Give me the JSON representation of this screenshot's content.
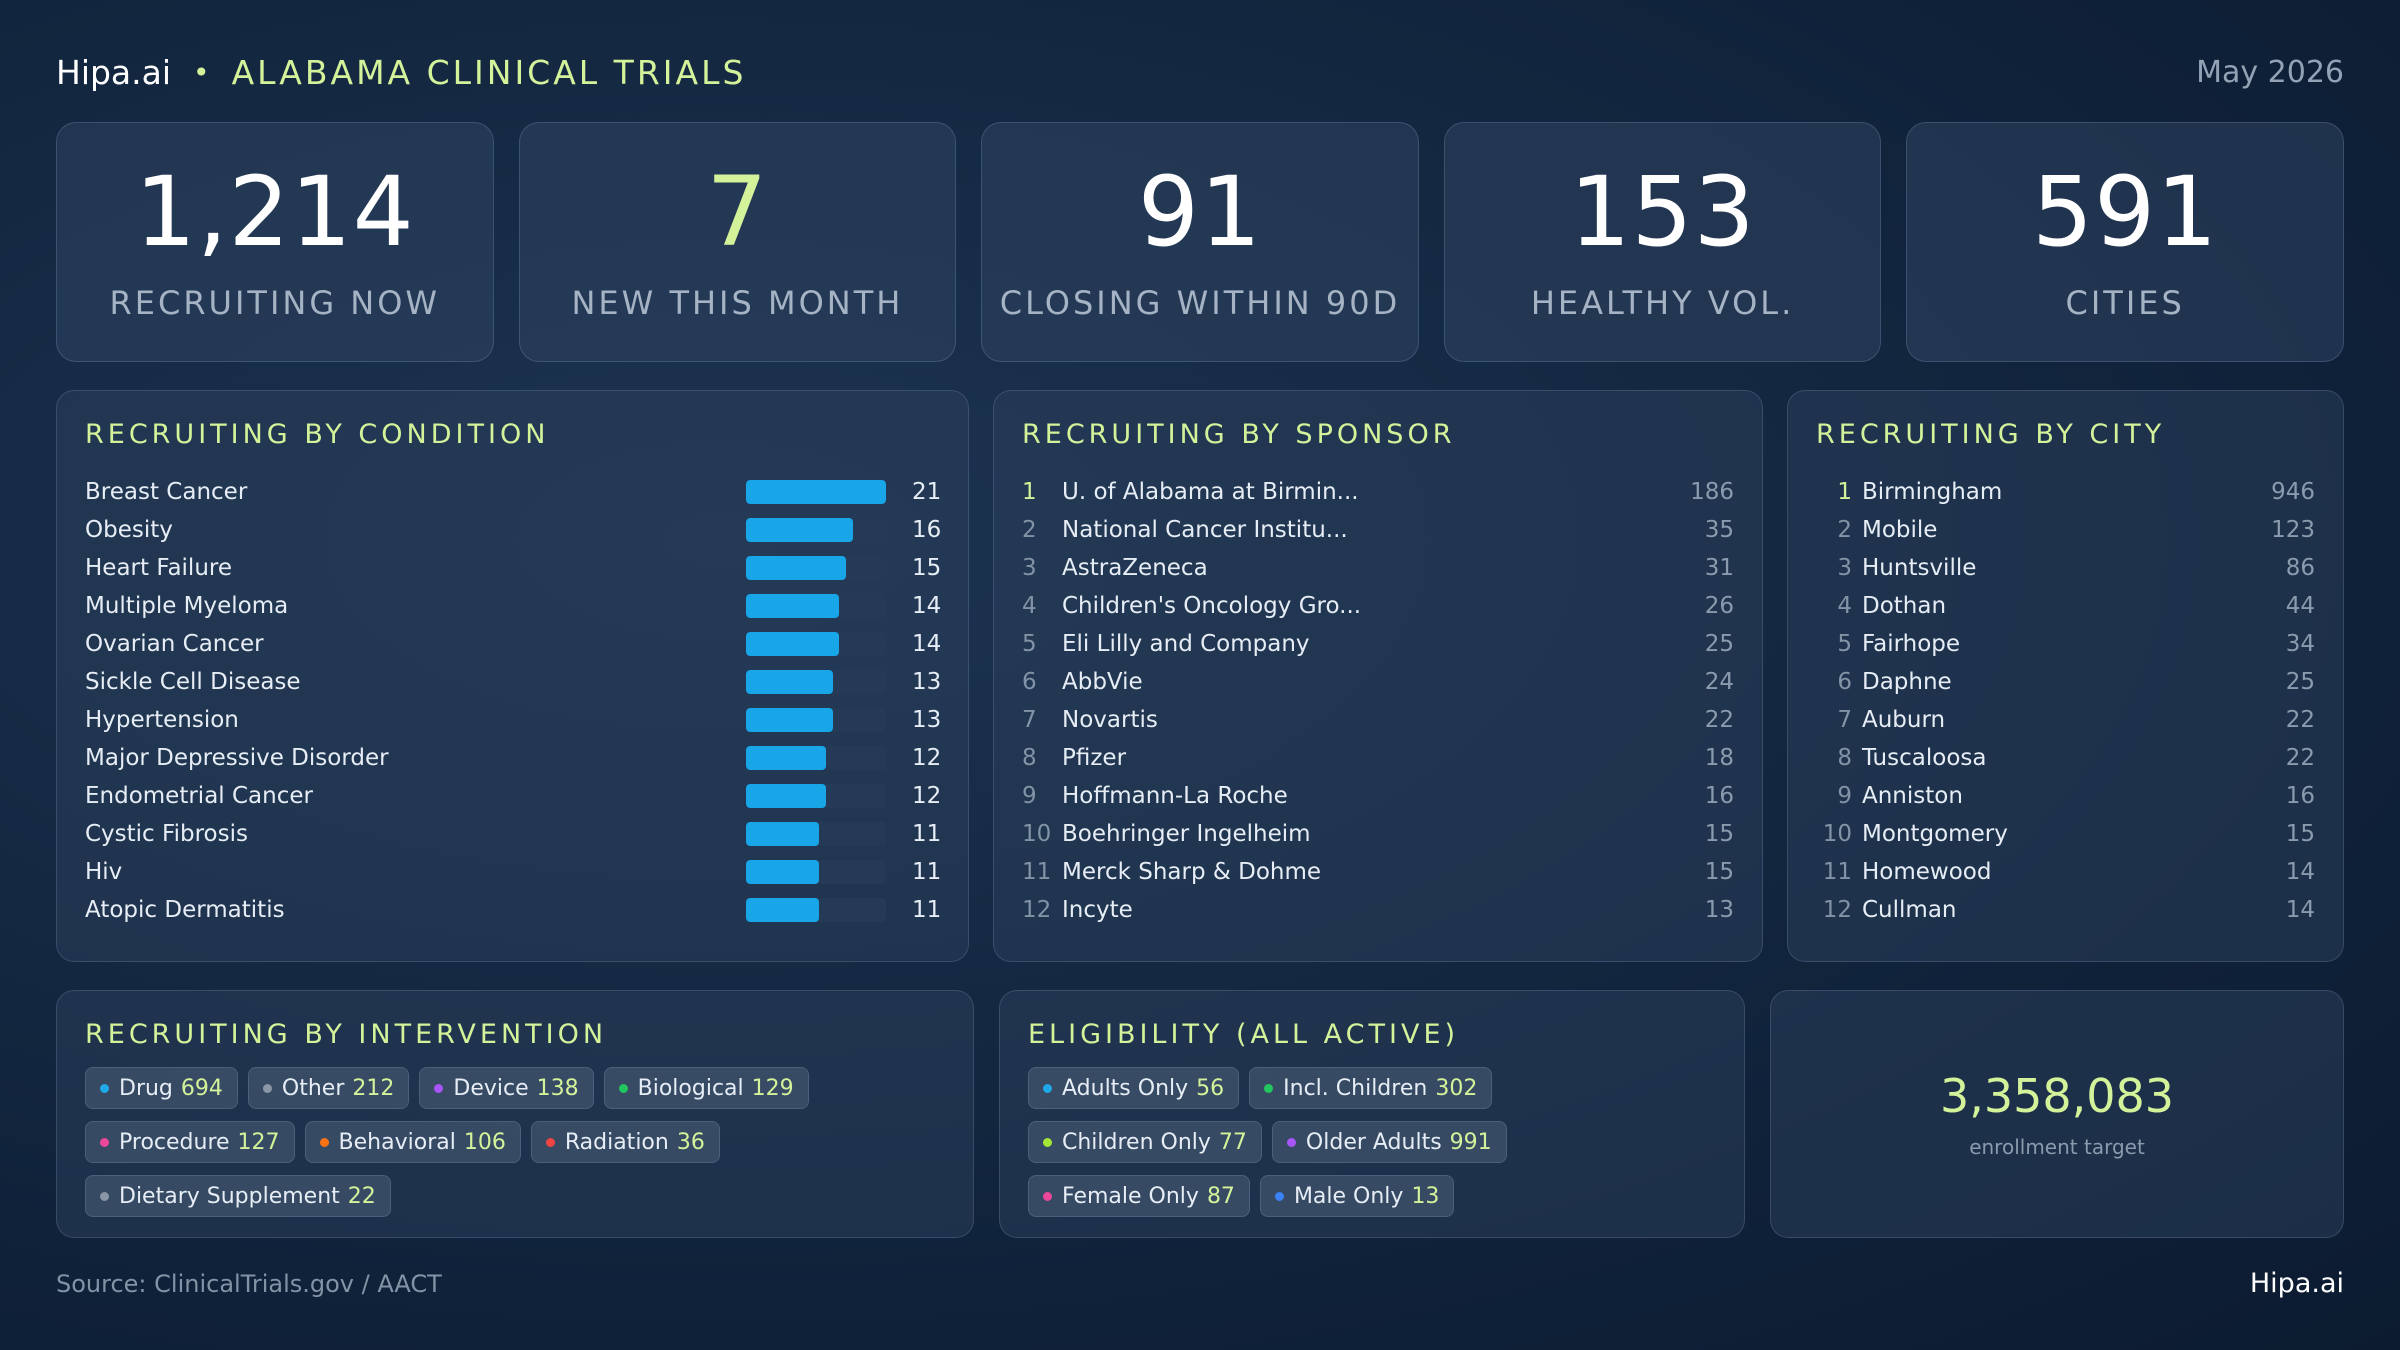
{
  "header": {
    "brand": "Hipa.ai",
    "separator": "•",
    "title": "ALABAMA CLINICAL TRIALS",
    "date": "May 2026"
  },
  "kpis": [
    {
      "value": "1,214",
      "label": "RECRUITING NOW",
      "accent": false
    },
    {
      "value": "7",
      "label": "NEW THIS MONTH",
      "accent": true
    },
    {
      "value": "91",
      "label": "CLOSING WITHIN 90D",
      "accent": false
    },
    {
      "value": "153",
      "label": "HEALTHY VOL.",
      "accent": false
    },
    {
      "value": "591",
      "label": "CITIES",
      "accent": false
    }
  ],
  "conditions": {
    "title": "RECRUITING BY CONDITION",
    "items": [
      {
        "name": "Breast Cancer",
        "count": 21
      },
      {
        "name": "Obesity",
        "count": 16
      },
      {
        "name": "Heart Failure",
        "count": 15
      },
      {
        "name": "Multiple Myeloma",
        "count": 14
      },
      {
        "name": "Ovarian Cancer",
        "count": 14
      },
      {
        "name": "Sickle Cell Disease",
        "count": 13
      },
      {
        "name": "Hypertension",
        "count": 13
      },
      {
        "name": "Major Depressive Disorder",
        "count": 12
      },
      {
        "name": "Endometrial Cancer",
        "count": 12
      },
      {
        "name": "Cystic Fibrosis",
        "count": 11
      },
      {
        "name": "Hiv",
        "count": 11
      },
      {
        "name": "Atopic Dermatitis",
        "count": 11
      }
    ]
  },
  "sponsors": {
    "title": "RECRUITING BY SPONSOR",
    "items": [
      {
        "rank": "1",
        "name": "U. of Alabama at Birmin...",
        "count": "186"
      },
      {
        "rank": "2",
        "name": "National Cancer Institu...",
        "count": "35"
      },
      {
        "rank": "3",
        "name": "AstraZeneca",
        "count": "31"
      },
      {
        "rank": "4",
        "name": "Children's Oncology Gro...",
        "count": "26"
      },
      {
        "rank": "5",
        "name": "Eli Lilly and Company",
        "count": "25"
      },
      {
        "rank": "6",
        "name": "AbbVie",
        "count": "24"
      },
      {
        "rank": "7",
        "name": "Novartis",
        "count": "22"
      },
      {
        "rank": "8",
        "name": "Pfizer",
        "count": "18"
      },
      {
        "rank": "9",
        "name": "Hoffmann-La Roche",
        "count": "16"
      },
      {
        "rank": "10",
        "name": "Boehringer Ingelheim",
        "count": "15"
      },
      {
        "rank": "11",
        "name": "Merck Sharp & Dohme",
        "count": "15"
      },
      {
        "rank": "12",
        "name": "Incyte",
        "count": "13"
      }
    ]
  },
  "cities": {
    "title": "RECRUITING BY CITY",
    "items": [
      {
        "rank": "1",
        "name": "Birmingham",
        "count": "946"
      },
      {
        "rank": "2",
        "name": "Mobile",
        "count": "123"
      },
      {
        "rank": "3",
        "name": "Huntsville",
        "count": "86"
      },
      {
        "rank": "4",
        "name": "Dothan",
        "count": "44"
      },
      {
        "rank": "5",
        "name": "Fairhope",
        "count": "34"
      },
      {
        "rank": "6",
        "name": "Daphne",
        "count": "25"
      },
      {
        "rank": "7",
        "name": "Auburn",
        "count": "22"
      },
      {
        "rank": "8",
        "name": "Tuscaloosa",
        "count": "22"
      },
      {
        "rank": "9",
        "name": "Anniston",
        "count": "16"
      },
      {
        "rank": "10",
        "name": "Montgomery",
        "count": "15"
      },
      {
        "rank": "11",
        "name": "Homewood",
        "count": "14"
      },
      {
        "rank": "12",
        "name": "Cullman",
        "count": "14"
      }
    ]
  },
  "interventions": {
    "title": "RECRUITING BY INTERVENTION",
    "items": [
      {
        "label": "Drug",
        "value": "694",
        "color": "#1fa9e8"
      },
      {
        "label": "Other",
        "value": "212",
        "color": "#8a96a5"
      },
      {
        "label": "Device",
        "value": "138",
        "color": "#a855f7"
      },
      {
        "label": "Biological",
        "value": "129",
        "color": "#22c55e"
      },
      {
        "label": "Procedure",
        "value": "127",
        "color": "#ec4899"
      },
      {
        "label": "Behavioral",
        "value": "106",
        "color": "#f97316"
      },
      {
        "label": "Radiation",
        "value": "36",
        "color": "#ef4444"
      },
      {
        "label": "Dietary Supplement",
        "value": "22",
        "color": "#8a96a5"
      }
    ]
  },
  "eligibility": {
    "title": "ELIGIBILITY (ALL ACTIVE)",
    "items": [
      {
        "label": "Adults Only",
        "value": "56",
        "color": "#1fa9e8"
      },
      {
        "label": "Incl. Children",
        "value": "302",
        "color": "#22c55e"
      },
      {
        "label": "Children Only",
        "value": "77",
        "color": "#a3e635"
      },
      {
        "label": "Older Adults",
        "value": "991",
        "color": "#a855f7"
      },
      {
        "label": "Female Only",
        "value": "87",
        "color": "#ec4899"
      },
      {
        "label": "Male Only",
        "value": "13",
        "color": "#3b82f6"
      }
    ]
  },
  "enrollment": {
    "value": "3,358,083",
    "label": "enrollment target"
  },
  "footer": {
    "source": "Source: ClinicalTrials.gov / AACT",
    "brand": "Hipa.ai"
  }
}
